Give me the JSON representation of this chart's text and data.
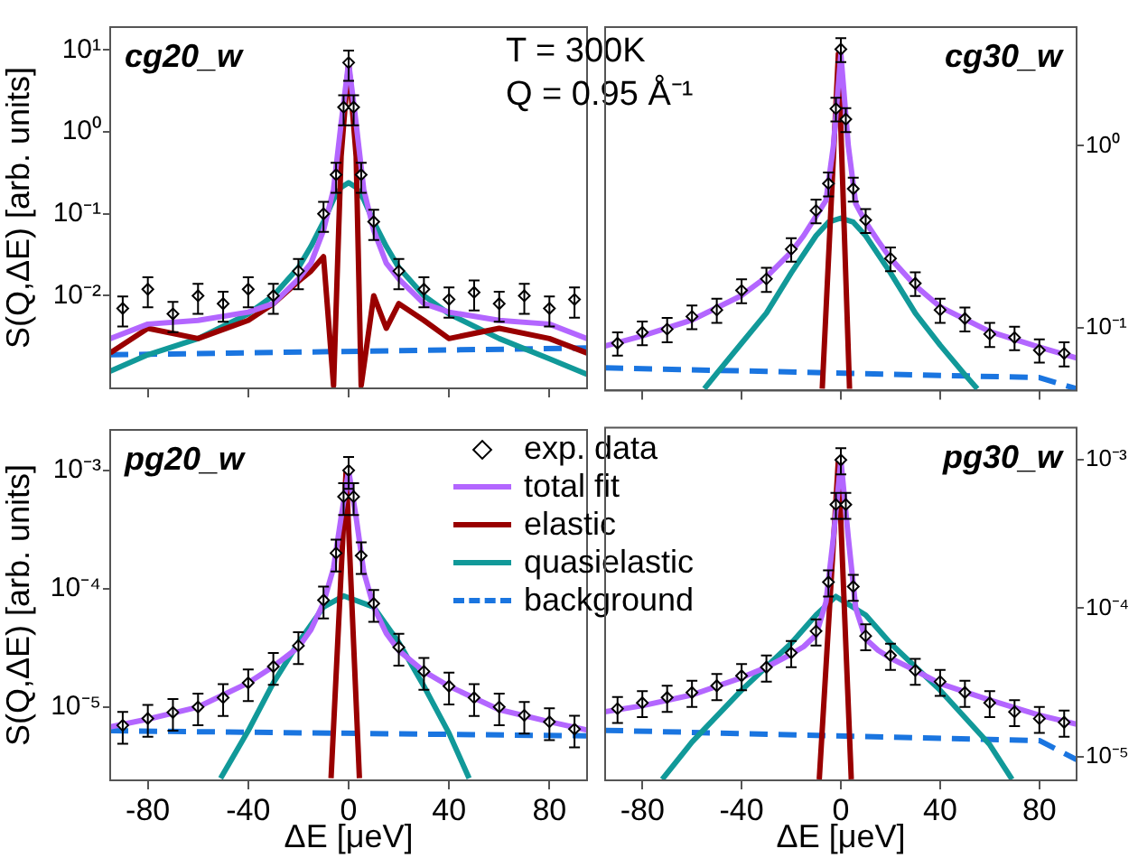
{
  "chart_data": [
    {
      "type": "line",
      "title": "cg20_w",
      "ylabel": "S(Q,ΔE) [arb. units]",
      "annotations": [
        "T = 300K",
        "Q = 0.95 Å⁻¹"
      ],
      "xlim": [
        -95,
        95
      ],
      "xticks": [
        -80,
        -40,
        0,
        40,
        80
      ],
      "ylim": [
        0.00074,
        19
      ],
      "yticks": [
        {
          "value": 10,
          "label": "10¹"
        },
        {
          "value": 1,
          "label": "10⁰"
        },
        {
          "value": 0.1,
          "label": "10⁻¹"
        },
        {
          "value": 0.01,
          "label": "10⁻²"
        }
      ],
      "log": "y",
      "tick_labels": "y",
      "series": [
        {
          "type": "scatter",
          "marker": "diamond",
          "color": "#000000",
          "x": [
            -90,
            -80,
            -70,
            -60,
            -50,
            -40,
            -30,
            -20,
            -10,
            -5,
            -2,
            0,
            2,
            5,
            10,
            20,
            30,
            40,
            50,
            60,
            70,
            80,
            90
          ],
          "values": [
            0.007,
            0.012,
            0.006,
            0.01,
            0.008,
            0.012,
            0.01,
            0.02,
            0.1,
            0.3,
            2,
            7,
            2,
            0.3,
            0.08,
            0.02,
            0.012,
            0.009,
            0.011,
            0.008,
            0.01,
            0.007,
            0.009
          ],
          "errors": [
            0.0028,
            0.0048,
            0.0024,
            0.004,
            0.0032,
            0.0048,
            0.004,
            0.008,
            0.04,
            0.12,
            0.8,
            2.8,
            0.8,
            0.12,
            0.032,
            0.008,
            0.0048,
            0.0036,
            0.0044,
            0.0032,
            0.004,
            0.0028,
            0.0036
          ]
        },
        {
          "type": "line",
          "marker": "none",
          "color": "#b366ff",
          "x": [
            -95,
            -80,
            -60,
            -40,
            -30,
            -20,
            -15,
            -10,
            -6,
            -3,
            0,
            3,
            6,
            10,
            15,
            20,
            30,
            40,
            60,
            80,
            95
          ],
          "values": [
            0.003,
            0.0045,
            0.005,
            0.0063,
            0.008,
            0.016,
            0.025,
            0.063,
            0.2,
            1.26,
            7,
            1.26,
            0.2,
            0.063,
            0.025,
            0.016,
            0.008,
            0.0063,
            0.005,
            0.0045,
            0.003
          ]
        },
        {
          "type": "line",
          "marker": "none",
          "color": "#990000",
          "x": [
            -95,
            -80,
            -60,
            -40,
            -30,
            -20,
            -15,
            -10,
            -6,
            -3,
            0,
            3,
            5,
            10,
            15,
            20,
            30,
            40,
            60,
            80,
            95
          ],
          "values": [
            0.002,
            0.004,
            0.003,
            0.005,
            0.008,
            0.015,
            0.02,
            0.03,
            0.0008,
            0.5,
            7,
            0.5,
            0.0008,
            0.01,
            0.004,
            0.008,
            0.005,
            0.003,
            0.004,
            0.003,
            0.002
          ]
        },
        {
          "type": "line",
          "marker": "none",
          "color": "#119999",
          "x": [
            -95,
            -80,
            -60,
            -40,
            -30,
            -20,
            -15,
            -10,
            -6,
            -3,
            0,
            3,
            6,
            10,
            15,
            20,
            30,
            40,
            60,
            80,
            95
          ],
          "values": [
            0.0012,
            0.0019,
            0.003,
            0.006,
            0.01,
            0.022,
            0.04,
            0.08,
            0.15,
            0.21,
            0.24,
            0.21,
            0.15,
            0.08,
            0.04,
            0.022,
            0.01,
            0.006,
            0.003,
            0.0017,
            0.0011
          ]
        },
        {
          "type": "line",
          "marker": "none",
          "line_style": "dashed",
          "color": "#1a75e0",
          "x": [
            -95,
            95
          ],
          "values": [
            0.0019,
            0.0023
          ]
        }
      ]
    },
    {
      "type": "line",
      "title": "cg30_w",
      "xlim": [
        -95,
        95
      ],
      "xticks": [
        -80,
        -40,
        0,
        40,
        80
      ],
      "ylim": [
        0.045,
        4.5
      ],
      "yticks": [
        {
          "value": 1,
          "label": "10⁰"
        },
        {
          "value": 0.1,
          "label": "10⁻¹"
        }
      ],
      "log": "y",
      "tick_labels": "y",
      "series": [
        {
          "type": "scatter",
          "marker": "diamond",
          "color": "#000000",
          "x": [
            -90,
            -80,
            -70,
            -60,
            -50,
            -40,
            -30,
            -20,
            -10,
            -5,
            -2,
            0,
            2,
            5,
            10,
            20,
            30,
            40,
            50,
            60,
            70,
            80,
            90
          ],
          "values": [
            0.082,
            0.094,
            0.098,
            0.115,
            0.125,
            0.16,
            0.185,
            0.27,
            0.44,
            0.62,
            1.6,
            3.4,
            1.4,
            0.58,
            0.39,
            0.24,
            0.175,
            0.125,
            0.112,
            0.092,
            0.088,
            0.075,
            0.072
          ],
          "errors": [
            0.012,
            0.014,
            0.015,
            0.017,
            0.019,
            0.024,
            0.028,
            0.04,
            0.066,
            0.093,
            0.24,
            0.51,
            0.21,
            0.087,
            0.059,
            0.036,
            0.026,
            0.019,
            0.017,
            0.014,
            0.013,
            0.011,
            0.011
          ]
        },
        {
          "type": "line",
          "marker": "none",
          "color": "#b366ff",
          "x": [
            -95,
            -80,
            -60,
            -40,
            -30,
            -20,
            -15,
            -10,
            -6,
            -3,
            0,
            3,
            6,
            10,
            15,
            20,
            30,
            40,
            60,
            80,
            95
          ],
          "values": [
            0.079,
            0.09,
            0.11,
            0.15,
            0.19,
            0.26,
            0.32,
            0.41,
            0.5,
            1,
            3.2,
            1,
            0.48,
            0.38,
            0.3,
            0.24,
            0.17,
            0.13,
            0.095,
            0.078,
            0.068
          ]
        },
        {
          "type": "line",
          "marker": "none",
          "color": "#990000",
          "x": [
            -7.5,
            -1,
            3.5
          ],
          "values": [
            0.046,
            3.2,
            0.046
          ]
        },
        {
          "type": "line",
          "marker": "none",
          "color": "#119999",
          "x": [
            -55,
            -50,
            -40,
            -30,
            -20,
            -10,
            -5,
            0,
            5,
            10,
            20,
            30,
            40,
            50,
            55
          ],
          "values": [
            0.046,
            0.056,
            0.082,
            0.12,
            0.2,
            0.32,
            0.38,
            0.4,
            0.38,
            0.32,
            0.2,
            0.12,
            0.08,
            0.055,
            0.046
          ]
        },
        {
          "type": "line",
          "marker": "none",
          "line_style": "dashed",
          "color": "#1a75e0",
          "x": [
            -95,
            80,
            95
          ],
          "values": [
            0.06,
            0.053,
            0.046
          ]
        }
      ]
    },
    {
      "type": "line",
      "title": "pg20_w",
      "xlabel": "ΔE [μeV]",
      "ylabel": "S(Q,ΔE) [arb. units]",
      "legend": "top right",
      "xlim": [
        -95,
        95
      ],
      "xticks": [
        -80,
        -40,
        0,
        40,
        80
      ],
      "ylim": [
        2.4e-06,
        0.0022
      ],
      "yticks": [
        {
          "value": 0.001,
          "label": "10⁻³"
        },
        {
          "value": 0.0001,
          "label": "10⁻⁴"
        },
        {
          "value": 1e-05,
          "label": "10⁻⁵"
        }
      ],
      "log": "y",
      "series": [
        {
          "name": "exp. data",
          "type": "scatter",
          "marker": "diamond",
          "color": "#000000",
          "x": [
            -90,
            -80,
            -70,
            -60,
            -50,
            -40,
            -30,
            -20,
            -10,
            -5,
            -2,
            0,
            2,
            5,
            10,
            20,
            30,
            40,
            50,
            60,
            70,
            80,
            90
          ],
          "values": [
            7e-06,
            8e-06,
            9e-06,
            1e-05,
            1.2e-05,
            1.6e-05,
            2.2e-05,
            3.3e-05,
            8e-05,
            0.0002,
            0.0006,
            0.001,
            0.0006,
            0.00019,
            7.5e-05,
            3.2e-05,
            2e-05,
            1.5e-05,
            1.2e-05,
            1e-05,
            8.5e-06,
            7.5e-06,
            6.5e-06
          ],
          "errors": [
            2.1e-06,
            2.4e-06,
            2.7e-06,
            3e-06,
            3.6e-06,
            4.8e-06,
            6.6e-06,
            9.9e-06,
            2.4e-05,
            6e-05,
            0.00018,
            0.0003,
            0.00018,
            5.7e-05,
            2.25e-05,
            9.6e-06,
            6e-06,
            4.5e-06,
            3.6e-06,
            3e-06,
            2.55e-06,
            2.25e-06,
            1.95e-06
          ]
        },
        {
          "name": "total fit",
          "type": "line",
          "marker": "none",
          "color": "#b366ff",
          "x": [
            -95,
            -80,
            -60,
            -40,
            -30,
            -20,
            -15,
            -10,
            -6,
            -3,
            0,
            3,
            6,
            10,
            15,
            20,
            30,
            40,
            60,
            80,
            95
          ],
          "values": [
            6.8e-06,
            7.9e-06,
            1e-05,
            1.6e-05,
            2.2e-05,
            3.2e-05,
            4.5e-05,
            7.6e-05,
            0.00015,
            0.0004,
            0.001,
            0.0004,
            0.00014,
            7e-05,
            4.2e-05,
            3e-05,
            2e-05,
            1.5e-05,
            9.5e-06,
            7.5e-06,
            6.4e-06
          ]
        },
        {
          "name": "elastic",
          "type": "line",
          "marker": "none",
          "color": "#990000",
          "x": [
            -7,
            -1,
            4.3
          ],
          "values": [
            2.5e-06,
            0.001,
            2.5e-06
          ]
        },
        {
          "name": "quasielastic",
          "type": "line",
          "marker": "none",
          "color": "#119999",
          "x": [
            -51,
            -40,
            -30,
            -20,
            -10,
            -2,
            10,
            20,
            30,
            40,
            48
          ],
          "values": [
            2.5e-06,
            6.3e-06,
            1.6e-05,
            3.5e-05,
            7e-05,
            8.7e-05,
            7e-05,
            3.5e-05,
            1.5e-05,
            6e-06,
            2.5e-06
          ]
        },
        {
          "name": "background",
          "type": "line",
          "marker": "none",
          "line_style": "dashed",
          "color": "#1a75e0",
          "x": [
            -95,
            95
          ],
          "values": [
            6.3e-06,
            5.7e-06
          ]
        }
      ]
    },
    {
      "type": "line",
      "title": "pg30_w",
      "xlabel": "ΔE [μeV]",
      "xlim": [
        -95,
        95
      ],
      "xticks": [
        -80,
        -40,
        0,
        40,
        80
      ],
      "ylim": [
        6.9e-06,
        0.00165
      ],
      "yticks": [
        {
          "value": 0.001,
          "label": "10⁻³"
        },
        {
          "value": 0.0001,
          "label": "10⁻⁴"
        },
        {
          "value": 1e-05,
          "label": "10⁻⁵"
        }
      ],
      "log": "y",
      "series": [
        {
          "type": "scatter",
          "marker": "diamond",
          "color": "#000000",
          "x": [
            -90,
            -80,
            -70,
            -60,
            -50,
            -40,
            -30,
            -20,
            -10,
            -5,
            -2,
            0,
            2,
            5,
            10,
            20,
            30,
            40,
            50,
            60,
            70,
            80,
            90
          ],
          "values": [
            2.1e-05,
            2.3e-05,
            2.5e-05,
            2.7e-05,
            3e-05,
            3.5e-05,
            4e-05,
            5e-05,
            7e-05,
            0.00015,
            0.0005,
            0.001,
            0.0005,
            0.00014,
            6.5e-05,
            4.8e-05,
            3.8e-05,
            3.2e-05,
            2.7e-05,
            2.3e-05,
            2e-05,
            1.8e-05,
            1.7e-05
          ],
          "errors": [
            4.2e-06,
            4.6e-06,
            5e-06,
            5.4e-06,
            6e-06,
            7e-06,
            8e-06,
            1e-05,
            1.4e-05,
            3e-05,
            0.0001,
            0.0002,
            0.0001,
            2.8e-05,
            1.3e-05,
            9.6e-06,
            7.6e-06,
            6.4e-06,
            5.4e-06,
            4.6e-06,
            4e-06,
            3.6e-06,
            3.4e-06
          ]
        },
        {
          "type": "line",
          "marker": "none",
          "color": "#b366ff",
          "x": [
            -95,
            -80,
            -60,
            -40,
            -30,
            -20,
            -15,
            -10,
            -6,
            -3,
            0,
            3,
            6,
            10,
            15,
            20,
            30,
            40,
            60,
            80,
            95
          ],
          "values": [
            2e-05,
            2.2e-05,
            2.6e-05,
            3.4e-05,
            4e-05,
            4.9e-05,
            5.5e-05,
            6.6e-05,
            0.00011,
            0.0003,
            0.001,
            0.0003,
            0.0001,
            6.2e-05,
            5.2e-05,
            4.6e-05,
            3.8e-05,
            3.1e-05,
            2.4e-05,
            1.9e-05,
            1.65e-05
          ]
        },
        {
          "type": "line",
          "marker": "none",
          "color": "#990000",
          "x": [
            -8.7,
            -1,
            4.2
          ],
          "values": [
            7e-06,
            0.001,
            7e-06
          ]
        },
        {
          "type": "line",
          "marker": "none",
          "color": "#119999",
          "x": [
            -72,
            -60,
            -40,
            -20,
            -10,
            -2,
            10,
            20,
            40,
            60,
            69
          ],
          "values": [
            7e-06,
            1.25e-05,
            2.8e-05,
            5.8e-05,
            9e-05,
            0.00012,
            9e-05,
            5.8e-05,
            2.8e-05,
            1.2e-05,
            7e-06
          ]
        },
        {
          "type": "line",
          "marker": "none",
          "line_style": "dashed",
          "color": "#1a75e0",
          "x": [
            -95,
            80,
            95
          ],
          "values": [
            1.5e-05,
            1.28e-05,
            9.5e-06
          ]
        }
      ]
    }
  ]
}
